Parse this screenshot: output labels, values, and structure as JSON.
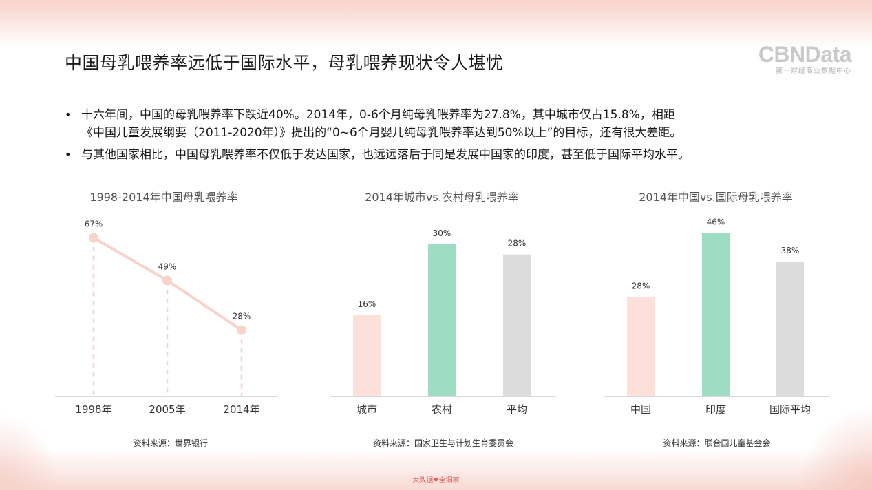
{
  "title": "中国母乳喂养率远低于国际水平，母乳喂养现状令人堪忧",
  "logo": {
    "main": "CBNData",
    "sub": "第一财经商业数据中心"
  },
  "bullets": [
    {
      "lines": [
        "十六年间，中国的母乳喂养率下跌近40%。2014年，0-6个月纯母乳喂养率为27.8%，其中城市仅占15.8%，相距",
        "《中国儿童发展纲要（2011-2020年）》提出的“0~6个月婴儿纯母乳喂养率达到50%以上”的目标，还有很大差距。"
      ]
    },
    {
      "lines": [
        "与其他国家相比，中国母乳喂养率不仅低于发达国家，也远远落后于同是发展中国家的印度，甚至低于国际平均水平。"
      ]
    }
  ],
  "chart_data": [
    {
      "type": "line",
      "title": "1998-2014年中国母乳喂养率",
      "categories": [
        "1998年",
        "2005年",
        "2014年"
      ],
      "values": [
        67,
        49,
        28
      ],
      "labels": [
        "67%",
        "49%",
        "28%"
      ],
      "unit": "%",
      "ylim": [
        0,
        75
      ],
      "color": "#f8d3cb",
      "source": "资料来源：世界银行"
    },
    {
      "type": "bar",
      "title": "2014年城市vs.农村母乳喂养率",
      "categories": [
        "城市",
        "农村",
        "平均"
      ],
      "values": [
        16,
        30,
        28
      ],
      "labels": [
        "16%",
        "30%",
        "28%"
      ],
      "unit": "%",
      "ylim": [
        0,
        35
      ],
      "colors": [
        "#fde0da",
        "#9edcc4",
        "#dcdcdc"
      ],
      "source": "资料来源：国家卫生与计划生育委员会"
    },
    {
      "type": "bar",
      "title": "2014年中国vs.国际母乳喂养率",
      "categories": [
        "中国",
        "印度",
        "国际平均"
      ],
      "values": [
        28,
        46,
        38
      ],
      "labels": [
        "28%",
        "46%",
        "38%"
      ],
      "unit": "%",
      "ylim": [
        0,
        50
      ],
      "colors": [
        "#fde0da",
        "#9edcc4",
        "#dcdcdc"
      ],
      "source": "资料来源：联合国儿童基金会"
    }
  ],
  "footer": {
    "brand": "大数据❤全洞察"
  }
}
